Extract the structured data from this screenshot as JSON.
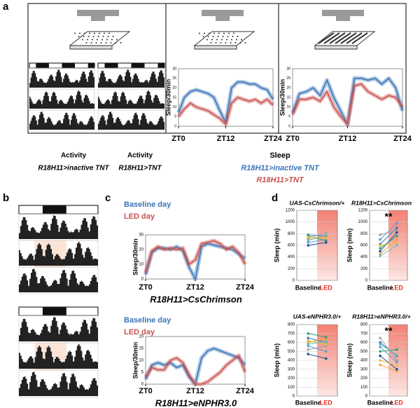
{
  "panel_labels": [
    "a",
    "b",
    "c",
    "d"
  ],
  "activity_labels": [
    {
      "title": "Activity",
      "genotype": "R18H11>inactive TNT"
    },
    {
      "title": "Activity",
      "genotype": "R18H11>TNT"
    }
  ],
  "chart_data": [
    {
      "type": "line",
      "legend_title": "Sleep",
      "ylabel": "Sleep/30min",
      "x": [
        0,
        1.5,
        3,
        4.5,
        6,
        7.5,
        9,
        10.5,
        12,
        13.5,
        15,
        16.5,
        18,
        19.5,
        21,
        22.5,
        24
      ],
      "xlim": [
        0,
        24
      ],
      "xticks": [
        {
          "value": 0,
          "label": "ZT0"
        },
        {
          "value": 12,
          "label": "ZT12"
        },
        {
          "value": 24,
          "label": "ZT24"
        }
      ],
      "ylim": [
        0,
        30
      ],
      "yticks": [
        0,
        5,
        10,
        15,
        20,
        25,
        30
      ],
      "series": [
        {
          "name": "R18H11>inactive TNT",
          "color": "#3a75b8",
          "values": [
            7,
            15,
            18,
            19,
            18,
            17,
            15,
            8,
            2,
            20,
            23,
            23,
            22,
            22,
            20,
            19,
            14
          ]
        },
        {
          "name": "R18H11>TNT",
          "color": "#c8524f",
          "values": [
            5,
            9,
            12,
            10,
            9,
            8,
            6,
            4,
            1,
            12,
            15,
            14,
            13,
            14,
            12,
            14,
            11
          ]
        }
      ]
    },
    {
      "type": "line",
      "ylabel": "Sleep/30min",
      "x": [
        0,
        1.5,
        3,
        4.5,
        6,
        7.5,
        9,
        10.5,
        12,
        13.5,
        15,
        16.5,
        18,
        19.5,
        21,
        22.5,
        24
      ],
      "xlim": [
        0,
        24
      ],
      "xticks": [
        {
          "value": 0,
          "label": "ZT0"
        },
        {
          "value": 12,
          "label": "ZT12"
        },
        {
          "value": 24,
          "label": "ZT24"
        }
      ],
      "ylim": [
        0,
        30
      ],
      "yticks": [
        0,
        5,
        10,
        15,
        20,
        25,
        30
      ],
      "series": [
        {
          "color": "#3a75b8",
          "values": [
            7,
            17,
            18,
            20,
            16,
            24,
            15,
            8,
            1,
            25,
            25,
            24,
            25,
            22,
            25,
            20,
            8
          ]
        },
        {
          "color": "#c8524f",
          "values": [
            6,
            14,
            14,
            15,
            13,
            18,
            10,
            5,
            1,
            21,
            22,
            18,
            16,
            14,
            16,
            15,
            10
          ]
        }
      ]
    },
    {
      "type": "line",
      "title": "R18H11>CsChrimson",
      "ylabel": "Sleep/30min",
      "x": [
        0,
        1.5,
        3,
        4.5,
        6,
        7.5,
        9,
        10.5,
        12,
        13.5,
        15,
        16.5,
        18,
        19.5,
        21,
        22.5,
        24
      ],
      "xlim": [
        0,
        24
      ],
      "xticks": [
        {
          "value": 0,
          "label": "ZT0"
        },
        {
          "value": 12,
          "label": "ZT12"
        },
        {
          "value": 24,
          "label": "ZT24"
        }
      ],
      "ylim": [
        0,
        30
      ],
      "yticks": [
        0,
        10,
        20,
        30
      ],
      "series": [
        {
          "name": "Baseline day",
          "color": "#3a75b8",
          "values": [
            3,
            18,
            21,
            21,
            20,
            22,
            19,
            8,
            0,
            22,
            24,
            23,
            22,
            21,
            20,
            17,
            14
          ]
        },
        {
          "name": "LED day",
          "color": "#c8524f",
          "values": [
            4,
            19,
            22,
            20,
            21,
            20,
            21,
            10,
            13,
            24,
            25,
            26,
            24,
            20,
            22,
            18,
            10
          ]
        }
      ]
    },
    {
      "type": "line",
      "title": "R18H11>eNPHR3.0",
      "ylabel": "Sleep/30min",
      "x": [
        0,
        1.5,
        3,
        4.5,
        6,
        7.5,
        9,
        10.5,
        12,
        13.5,
        15,
        16.5,
        18,
        19.5,
        21,
        22.5,
        24
      ],
      "xlim": [
        0,
        24
      ],
      "xticks": [
        {
          "value": 0,
          "label": "ZT0"
        },
        {
          "value": 12,
          "label": "ZT12"
        },
        {
          "value": 24,
          "label": "ZT24"
        }
      ],
      "ylim": [
        0,
        20
      ],
      "yticks": [
        0,
        5,
        10,
        15,
        20
      ],
      "series": [
        {
          "name": "Baseline day",
          "color": "#3a75b8",
          "values": [
            2,
            8,
            9,
            8,
            9,
            7,
            8,
            3,
            0,
            11,
            14,
            15,
            14,
            13,
            12,
            11,
            8
          ]
        },
        {
          "name": "LED day",
          "color": "#c8524f",
          "values": [
            3,
            7,
            6,
            6,
            10,
            11,
            9,
            4,
            0,
            0,
            1,
            3,
            5,
            8,
            10,
            12,
            5
          ]
        }
      ]
    },
    {
      "type": "paired",
      "title": "UAS-CsChrimson/+",
      "ylabel": "Sleep (min)",
      "categories": [
        "Baseline",
        "LED"
      ],
      "category_colors": [
        "#000000",
        "#e0302a"
      ],
      "ylim": [
        0,
        1200
      ],
      "yticks": [
        0,
        200,
        400,
        600,
        800,
        1000,
        1200
      ],
      "series": [
        {
          "color": "#3a75b8",
          "values": [
            780,
            760
          ]
        },
        {
          "color": "#f0a030",
          "values": [
            700,
            740
          ]
        },
        {
          "color": "#5aa0d8",
          "values": [
            650,
            700
          ]
        },
        {
          "color": "#30a070",
          "values": [
            760,
            680
          ]
        },
        {
          "color": "#a0a0a0",
          "values": [
            720,
            820
          ]
        },
        {
          "color": "#2050a0",
          "values": [
            600,
            650
          ]
        },
        {
          "color": "#e0c040",
          "values": [
            740,
            720
          ]
        },
        {
          "color": "#60c0c0",
          "values": [
            680,
            780
          ]
        }
      ]
    },
    {
      "type": "paired",
      "title": "R18H11>CsChrimson",
      "ylabel": "Sleep (min)",
      "annotation": "**",
      "categories": [
        "Baseline",
        "LED"
      ],
      "category_colors": [
        "#000000",
        "#e0302a"
      ],
      "ylim": [
        0,
        1200
      ],
      "yticks": [
        0,
        200,
        400,
        600,
        800,
        1000,
        1200
      ],
      "series": [
        {
          "color": "#3a75b8",
          "values": [
            620,
            900
          ]
        },
        {
          "color": "#f0a030",
          "values": [
            450,
            700
          ]
        },
        {
          "color": "#5aa0d8",
          "values": [
            700,
            980
          ]
        },
        {
          "color": "#30a070",
          "values": [
            550,
            760
          ]
        },
        {
          "color": "#a0a0a0",
          "values": [
            780,
            860
          ]
        },
        {
          "color": "#2050a0",
          "values": [
            500,
            820
          ]
        },
        {
          "color": "#e0c040",
          "values": [
            600,
            640
          ]
        },
        {
          "color": "#60c0c0",
          "values": [
            420,
            600
          ]
        }
      ]
    },
    {
      "type": "paired",
      "title": "UAS-eNPHR3.0/+",
      "ylabel": "Sleep (min)",
      "categories": [
        "Baseline",
        "LED"
      ],
      "category_colors": [
        "#000000",
        "#e0302a"
      ],
      "ylim": [
        0,
        800
      ],
      "yticks": [
        0,
        100,
        200,
        300,
        400,
        500,
        600,
        700,
        800
      ],
      "series": [
        {
          "color": "#3a75b8",
          "values": [
            650,
            600
          ]
        },
        {
          "color": "#f0a030",
          "values": [
            600,
            640
          ]
        },
        {
          "color": "#5aa0d8",
          "values": [
            560,
            500
          ]
        },
        {
          "color": "#30a070",
          "values": [
            700,
            660
          ]
        },
        {
          "color": "#a0a0a0",
          "values": [
            520,
            560
          ]
        },
        {
          "color": "#2050a0",
          "values": [
            470,
            420
          ]
        },
        {
          "color": "#e0c040",
          "values": [
            620,
            580
          ]
        },
        {
          "color": "#60c0c0",
          "values": [
            580,
            610
          ]
        }
      ]
    },
    {
      "type": "paired",
      "title": "R18H11>eNPHR3.0/+",
      "ylabel": "Sleep (min)",
      "annotation": "**",
      "categories": [
        "Baseline",
        "LED"
      ],
      "category_colors": [
        "#000000",
        "#e0302a"
      ],
      "ylim": [
        0,
        800
      ],
      "yticks": [
        0,
        100,
        200,
        300,
        400,
        500,
        600,
        700,
        800
      ],
      "series": [
        {
          "color": "#3a75b8",
          "values": [
            600,
            450
          ]
        },
        {
          "color": "#f0a030",
          "values": [
            350,
            280
          ]
        },
        {
          "color": "#5aa0d8",
          "values": [
            550,
            380
          ]
        },
        {
          "color": "#30a070",
          "values": [
            500,
            520
          ]
        },
        {
          "color": "#a0a0a0",
          "values": [
            650,
            400
          ]
        },
        {
          "color": "#2050a0",
          "values": [
            450,
            300
          ]
        },
        {
          "color": "#e0c040",
          "values": [
            400,
            340
          ]
        },
        {
          "color": "#60c0c0",
          "values": [
            580,
            460
          ]
        }
      ]
    }
  ]
}
